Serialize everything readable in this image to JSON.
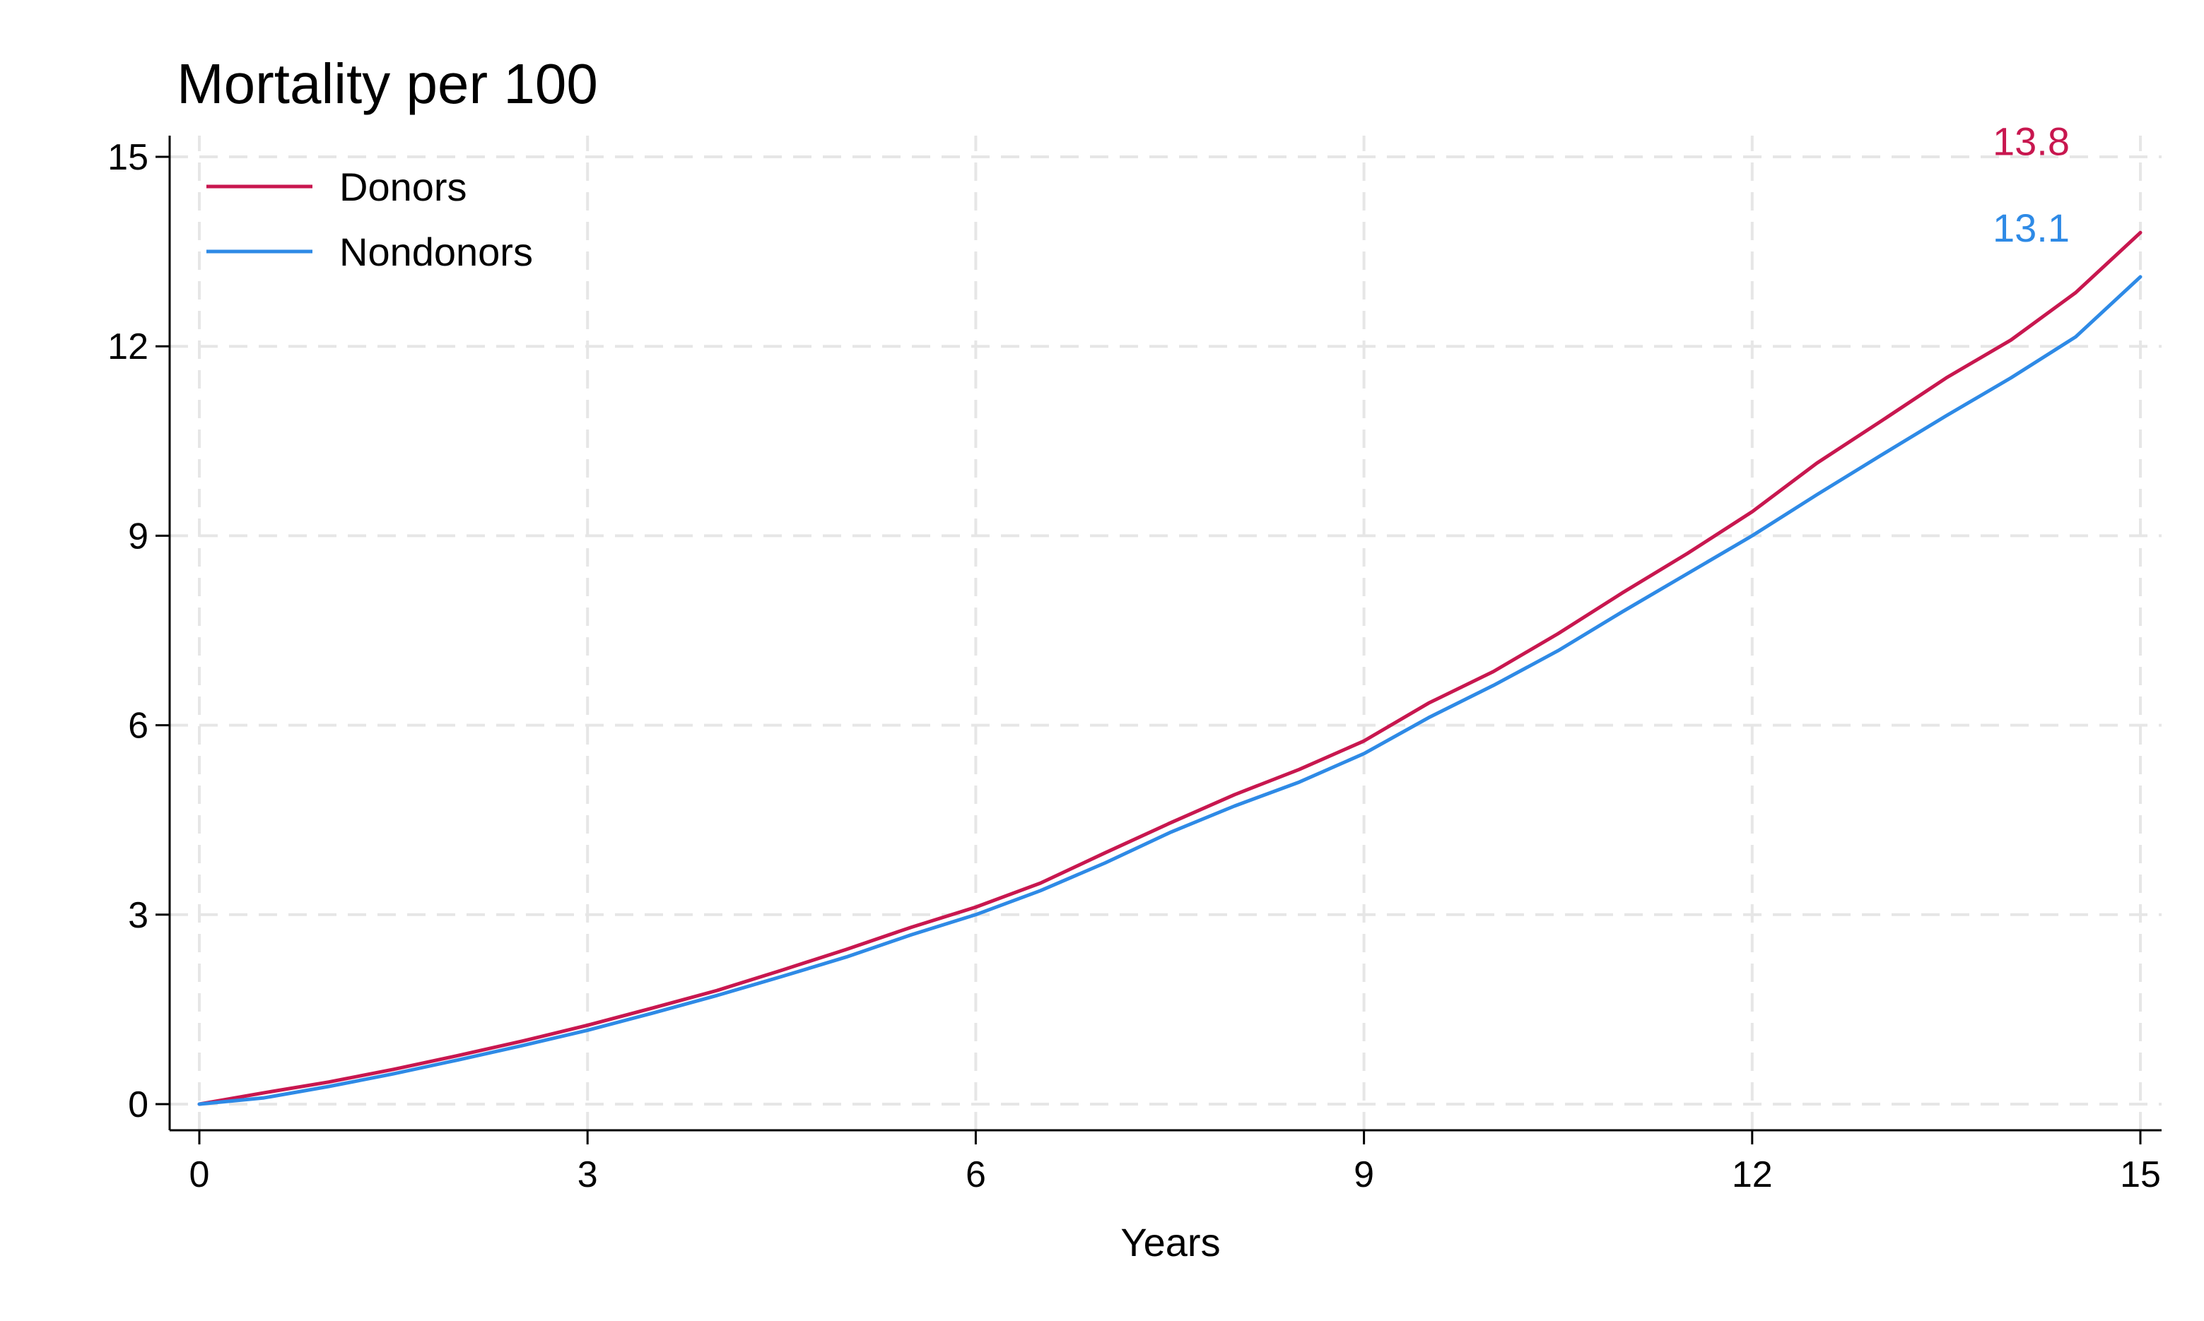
{
  "chart_data": {
    "type": "line",
    "title": "Mortality per 100",
    "xlabel": "Years",
    "ylabel": "",
    "xlim": [
      0,
      15
    ],
    "ylim": [
      0,
      15
    ],
    "x_ticks": [
      0,
      3,
      6,
      9,
      12,
      15
    ],
    "y_ticks": [
      0,
      3,
      6,
      9,
      12,
      15
    ],
    "x_tick_labels": [
      "0",
      "3",
      "6",
      "9",
      "12",
      "15"
    ],
    "y_tick_labels": [
      "0",
      "3",
      "6",
      "9",
      "12",
      "15"
    ],
    "grid": true,
    "legend": {
      "placement": "top-left"
    },
    "series": [
      {
        "name": "Donors",
        "color": "#c8174f",
        "end_label": "13.8",
        "x": [
          0,
          0.5,
          1,
          1.5,
          2,
          2.5,
          3,
          3.5,
          4,
          4.5,
          5,
          5.5,
          6,
          6.5,
          7,
          7.5,
          8,
          8.5,
          9,
          9.5,
          10,
          10.5,
          11,
          11.5,
          12,
          12.5,
          13,
          13.5,
          14,
          14.5,
          15
        ],
        "values": [
          0,
          0.18,
          0.35,
          0.55,
          0.77,
          1.0,
          1.25,
          1.52,
          1.8,
          2.12,
          2.45,
          2.8,
          3.12,
          3.5,
          3.98,
          4.45,
          4.9,
          5.3,
          5.75,
          6.35,
          6.85,
          7.45,
          8.1,
          8.72,
          9.38,
          10.15,
          10.82,
          11.5,
          12.1,
          12.85,
          13.8
        ]
      },
      {
        "name": "Nondonors",
        "color": "#2e8ae6",
        "end_label": "13.1",
        "x": [
          0,
          0.5,
          1,
          1.5,
          2,
          2.5,
          3,
          3.5,
          4,
          4.5,
          5,
          5.5,
          6,
          6.5,
          7,
          7.5,
          8,
          8.5,
          9,
          9.5,
          10,
          10.5,
          11,
          11.5,
          12,
          12.5,
          13,
          13.5,
          14,
          14.5,
          15
        ],
        "values": [
          0,
          0.1,
          0.28,
          0.48,
          0.7,
          0.93,
          1.17,
          1.44,
          1.72,
          2.02,
          2.33,
          2.68,
          3.0,
          3.38,
          3.82,
          4.3,
          4.72,
          5.1,
          5.55,
          6.12,
          6.63,
          7.18,
          7.8,
          8.4,
          9.0,
          9.65,
          10.28,
          10.9,
          11.5,
          12.15,
          13.1
        ]
      }
    ]
  }
}
